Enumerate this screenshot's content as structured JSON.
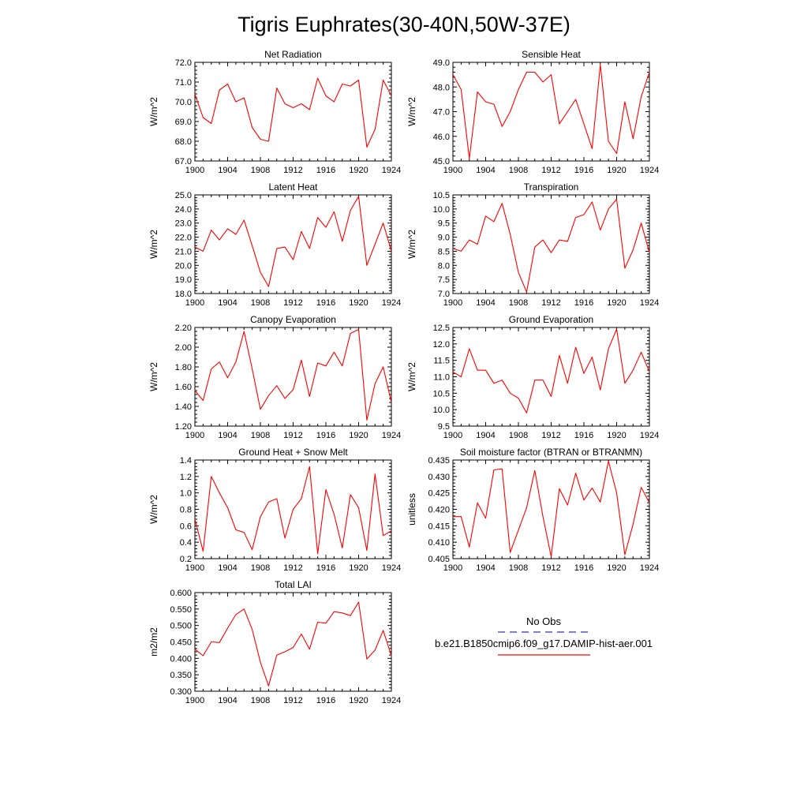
{
  "title": "Tigris Euphrates(30-40N,50W-37E)",
  "legend": {
    "obs_label": "No Obs",
    "obs_color": "#3333aa",
    "model_label": "b.e21.B1850cmip6.f09_g17.DAMIP-hist-aer.001",
    "model_color": "#ff0000"
  },
  "chart_data": [
    {
      "type": "line",
      "title": "Net Radiation",
      "ylabel": "W/m^2",
      "ylim": [
        67.0,
        72.0
      ],
      "yticks": [
        "67.0",
        "68.0",
        "69.0",
        "70.0",
        "71.0",
        "72.0"
      ],
      "xlim": [
        1900,
        1924
      ],
      "xticks": [
        "1900",
        "1904",
        "1908",
        "1912",
        "1916",
        "1920",
        "1924"
      ],
      "series": [
        {
          "color": "#ff0000",
          "x": [
            1900,
            1901,
            1902,
            1903,
            1904,
            1905,
            1906,
            1907,
            1908,
            1909,
            1910,
            1911,
            1912,
            1913,
            1914,
            1915,
            1916,
            1917,
            1918,
            1919,
            1920,
            1921,
            1922,
            1923,
            1924
          ],
          "values": [
            70.4,
            69.2,
            68.9,
            70.6,
            70.9,
            70.0,
            70.2,
            68.7,
            68.1,
            68.0,
            70.7,
            69.9,
            69.7,
            69.9,
            69.6,
            71.2,
            70.3,
            70.0,
            70.9,
            70.8,
            71.1,
            67.7,
            68.6,
            71.1,
            70.3
          ]
        }
      ]
    },
    {
      "type": "line",
      "title": "Sensible Heat",
      "ylabel": "W/m^2",
      "ylim": [
        45.0,
        49.0
      ],
      "yticks": [
        "45.0",
        "46.0",
        "47.0",
        "48.0",
        "49.0"
      ],
      "xlim": [
        1900,
        1924
      ],
      "xticks": [
        "1900",
        "1904",
        "1908",
        "1912",
        "1916",
        "1920",
        "1924"
      ],
      "series": [
        {
          "color": "#ff0000",
          "x": [
            1900,
            1901,
            1902,
            1903,
            1904,
            1905,
            1906,
            1907,
            1908,
            1909,
            1910,
            1911,
            1912,
            1913,
            1914,
            1915,
            1916,
            1917,
            1918,
            1919,
            1920,
            1921,
            1922,
            1923,
            1924
          ],
          "values": [
            48.5,
            47.9,
            45.1,
            47.8,
            47.4,
            47.3,
            46.4,
            47.0,
            47.9,
            48.6,
            48.6,
            48.2,
            48.5,
            46.5,
            47.0,
            47.5,
            46.5,
            45.5,
            48.9,
            45.8,
            45.3,
            47.4,
            45.9,
            47.6,
            48.6
          ]
        }
      ]
    },
    {
      "type": "line",
      "title": "Latent Heat",
      "ylabel": "W/m^2",
      "ylim": [
        18.0,
        25.0
      ],
      "yticks": [
        "18.0",
        "19.0",
        "20.0",
        "21.0",
        "22.0",
        "23.0",
        "24.0",
        "25.0"
      ],
      "xlim": [
        1900,
        1924
      ],
      "xticks": [
        "1900",
        "1904",
        "1908",
        "1912",
        "1916",
        "1920",
        "1924"
      ],
      "series": [
        {
          "color": "#ff0000",
          "x": [
            1900,
            1901,
            1902,
            1903,
            1904,
            1905,
            1906,
            1907,
            1908,
            1909,
            1910,
            1911,
            1912,
            1913,
            1914,
            1915,
            1916,
            1917,
            1918,
            1919,
            1920,
            1921,
            1922,
            1923,
            1924
          ],
          "values": [
            21.3,
            21.0,
            22.5,
            21.8,
            22.6,
            22.2,
            23.2,
            21.4,
            19.5,
            18.5,
            21.2,
            21.3,
            20.4,
            22.4,
            21.2,
            23.4,
            22.7,
            23.8,
            21.7,
            23.9,
            24.9,
            20.0,
            21.5,
            23.0,
            21.0
          ]
        }
      ]
    },
    {
      "type": "line",
      "title": "Transpiration",
      "ylabel": "W/m^2",
      "ylim": [
        7.0,
        10.5
      ],
      "yticks": [
        "7.0",
        "7.5",
        "8.0",
        "8.5",
        "9.0",
        "9.5",
        "10.0",
        "10.5"
      ],
      "xlim": [
        1900,
        1924
      ],
      "xticks": [
        "1900",
        "1904",
        "1908",
        "1912",
        "1916",
        "1920",
        "1924"
      ],
      "series": [
        {
          "color": "#ff0000",
          "x": [
            1900,
            1901,
            1902,
            1903,
            1904,
            1905,
            1906,
            1907,
            1908,
            1909,
            1910,
            1911,
            1912,
            1913,
            1914,
            1915,
            1916,
            1917,
            1918,
            1919,
            1920,
            1921,
            1922,
            1923,
            1924
          ],
          "values": [
            8.6,
            8.5,
            8.9,
            8.75,
            9.75,
            9.55,
            10.2,
            9.1,
            7.75,
            7.05,
            8.65,
            8.9,
            8.45,
            8.9,
            8.85,
            9.7,
            9.8,
            10.25,
            9.25,
            10.0,
            10.35,
            7.9,
            8.55,
            9.5,
            8.45
          ]
        }
      ]
    },
    {
      "type": "line",
      "title": "Canopy Evaporation",
      "ylabel": "W/m^2",
      "ylim": [
        1.2,
        2.2
      ],
      "yticks": [
        "1.20",
        "1.40",
        "1.60",
        "1.80",
        "2.00",
        "2.20"
      ],
      "xlim": [
        1900,
        1924
      ],
      "xticks": [
        "1900",
        "1904",
        "1908",
        "1912",
        "1916",
        "1920",
        "1924"
      ],
      "series": [
        {
          "color": "#ff0000",
          "x": [
            1900,
            1901,
            1902,
            1903,
            1904,
            1905,
            1906,
            1907,
            1908,
            1909,
            1910,
            1911,
            1912,
            1913,
            1914,
            1915,
            1916,
            1917,
            1918,
            1919,
            1920,
            1921,
            1922,
            1923,
            1924
          ],
          "values": [
            1.56,
            1.46,
            1.78,
            1.85,
            1.69,
            1.85,
            2.16,
            1.78,
            1.37,
            1.51,
            1.61,
            1.48,
            1.57,
            1.87,
            1.5,
            1.84,
            1.81,
            1.95,
            1.81,
            2.14,
            2.18,
            1.26,
            1.63,
            1.8,
            1.44
          ]
        }
      ]
    },
    {
      "type": "line",
      "title": "Ground Evaporation",
      "ylabel": "W/m^2",
      "ylim": [
        9.5,
        12.5
      ],
      "yticks": [
        "9.5",
        "10.0",
        "10.5",
        "11.0",
        "11.5",
        "12.0",
        "12.5"
      ],
      "xlim": [
        1900,
        1924
      ],
      "xticks": [
        "1900",
        "1904",
        "1908",
        "1912",
        "1916",
        "1920",
        "1924"
      ],
      "series": [
        {
          "color": "#ff0000",
          "x": [
            1900,
            1901,
            1902,
            1903,
            1904,
            1905,
            1906,
            1907,
            1908,
            1909,
            1910,
            1911,
            1912,
            1913,
            1914,
            1915,
            1916,
            1917,
            1918,
            1919,
            1920,
            1921,
            1922,
            1923,
            1924
          ],
          "values": [
            11.15,
            11.0,
            11.85,
            11.2,
            11.2,
            10.8,
            10.9,
            10.5,
            10.35,
            9.9,
            10.9,
            10.9,
            10.4,
            11.65,
            10.8,
            11.9,
            11.1,
            11.6,
            10.6,
            11.85,
            12.45,
            10.8,
            11.2,
            11.75,
            11.15
          ]
        }
      ]
    },
    {
      "type": "line",
      "title": "Ground Heat + Snow Melt",
      "ylabel": "W/m^2",
      "ylim": [
        0.2,
        1.4
      ],
      "yticks": [
        "0.2",
        "0.4",
        "0.6",
        "0.8",
        "1.0",
        "1.2",
        "1.4"
      ],
      "xlim": [
        1900,
        1924
      ],
      "xticks": [
        "1900",
        "1904",
        "1908",
        "1912",
        "1916",
        "1920",
        "1924"
      ],
      "series": [
        {
          "color": "#ff0000",
          "x": [
            1900,
            1901,
            1902,
            1903,
            1904,
            1905,
            1906,
            1907,
            1908,
            1909,
            1910,
            1911,
            1912,
            1913,
            1914,
            1915,
            1916,
            1917,
            1918,
            1919,
            1920,
            1921,
            1922,
            1923,
            1924
          ],
          "values": [
            0.68,
            0.29,
            1.2,
            1.0,
            0.82,
            0.55,
            0.52,
            0.31,
            0.71,
            0.89,
            0.93,
            0.45,
            0.8,
            0.93,
            1.32,
            0.26,
            1.04,
            0.74,
            0.33,
            0.98,
            0.82,
            0.3,
            1.23,
            0.48,
            0.54
          ]
        }
      ]
    },
    {
      "type": "line",
      "title": "Soil moisture factor (BTRAN or BTRANMN)",
      "ylabel": "unitless",
      "ylim": [
        0.405,
        0.435
      ],
      "yticks": [
        "0.405",
        "0.410",
        "0.415",
        "0.420",
        "0.425",
        "0.430",
        "0.435"
      ],
      "xlim": [
        1900,
        1924
      ],
      "xticks": [
        "1900",
        "1904",
        "1908",
        "1912",
        "1916",
        "1920",
        "1924"
      ],
      "series": [
        {
          "color": "#ff0000",
          "x": [
            1900,
            1901,
            1902,
            1903,
            1904,
            1905,
            1906,
            1907,
            1908,
            1909,
            1910,
            1911,
            1912,
            1913,
            1914,
            1915,
            1916,
            1917,
            1918,
            1919,
            1920,
            1921,
            1922,
            1923,
            1924
          ],
          "values": [
            0.4178,
            0.4178,
            0.4085,
            0.422,
            0.4173,
            0.432,
            0.4323,
            0.4069,
            0.4137,
            0.4205,
            0.4318,
            0.4178,
            0.4056,
            0.4263,
            0.4213,
            0.431,
            0.4228,
            0.4265,
            0.4222,
            0.4347,
            0.425,
            0.4062,
            0.4155,
            0.4267,
            0.422
          ]
        }
      ]
    },
    {
      "type": "line",
      "title": "Total LAI",
      "ylabel": "m2/m2",
      "ylim": [
        0.3,
        0.6
      ],
      "yticks": [
        "0.300",
        "0.350",
        "0.400",
        "0.450",
        "0.500",
        "0.550",
        "0.600"
      ],
      "xlim": [
        1900,
        1924
      ],
      "xticks": [
        "1900",
        "1904",
        "1908",
        "1912",
        "1916",
        "1920",
        "1924"
      ],
      "series": [
        {
          "color": "#ff0000",
          "x": [
            1900,
            1901,
            1902,
            1903,
            1904,
            1905,
            1906,
            1907,
            1908,
            1909,
            1910,
            1911,
            1912,
            1913,
            1914,
            1915,
            1916,
            1917,
            1918,
            1919,
            1920,
            1921,
            1922,
            1923,
            1924
          ],
          "values": [
            0.428,
            0.408,
            0.45,
            0.448,
            0.492,
            0.533,
            0.55,
            0.488,
            0.388,
            0.316,
            0.41,
            0.42,
            0.433,
            0.474,
            0.428,
            0.51,
            0.507,
            0.542,
            0.538,
            0.53,
            0.571,
            0.398,
            0.425,
            0.485,
            0.408
          ]
        }
      ]
    }
  ]
}
